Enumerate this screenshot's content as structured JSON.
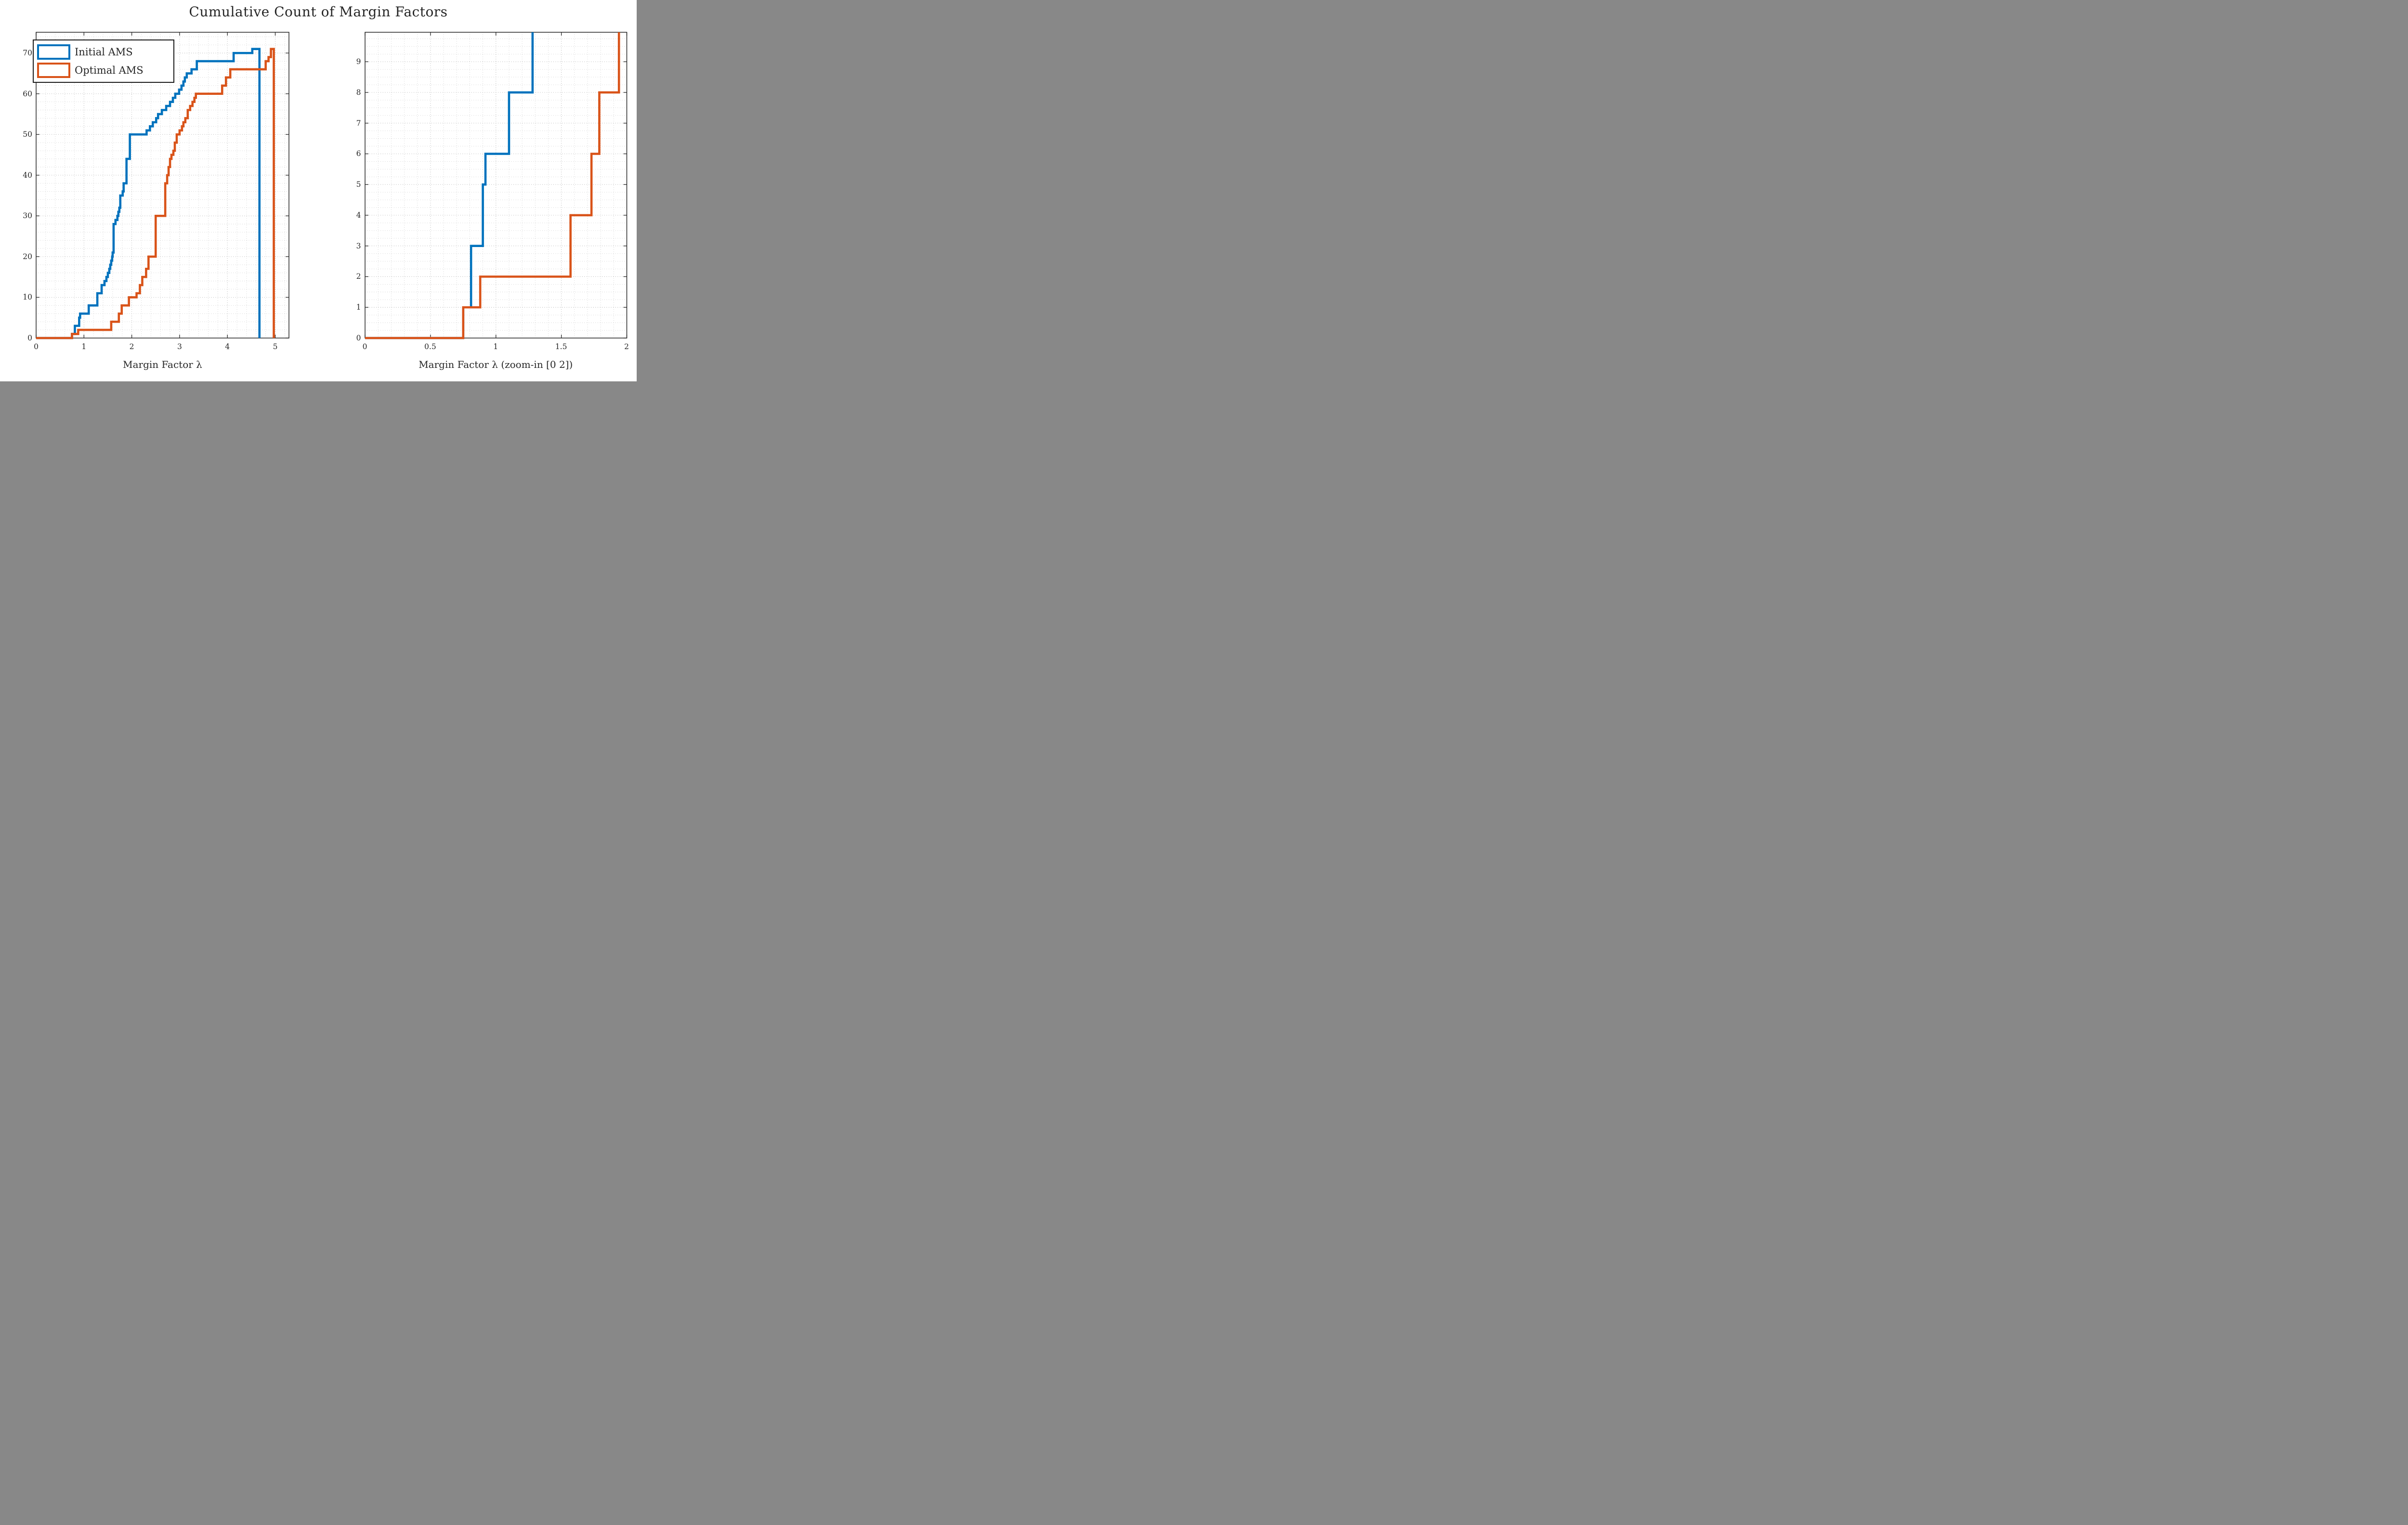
{
  "title": "Cumulative Count of Margin Factors",
  "colors": {
    "initial": "#0072BD",
    "optimal": "#D95319",
    "axis": "#262626",
    "grid_minor": "#bdbdbd",
    "grid_major": "#a3a3a3",
    "background": "#ffffff"
  },
  "legend": {
    "items": [
      {
        "label": "Initial AMS",
        "series": "initial"
      },
      {
        "label": "Optimal AMS",
        "series": "optimal"
      }
    ],
    "position": "northwest"
  },
  "chart_data": [
    {
      "type": "stairs-cumulative-count",
      "panel": "left",
      "xlabel": "Margin Factor λ",
      "ylabel": "",
      "xlim": [
        0,
        5.287
      ],
      "ylim": [
        0,
        75.1
      ],
      "xticks": [
        0,
        1,
        2,
        3,
        4,
        5
      ],
      "xtick_labels": [
        "0",
        "1",
        "2",
        "3",
        "4",
        "5"
      ],
      "yticks": [
        0,
        10,
        20,
        30,
        40,
        50,
        60,
        70
      ],
      "ytick_labels": [
        "0",
        "10",
        "20",
        "30",
        "40",
        "50",
        "60",
        "70"
      ],
      "grid": "dotted-minor",
      "minor_grid_spacing": {
        "x": 0.2,
        "y": 2
      },
      "series": [
        {
          "name": "Initial AMS",
          "color_key": "initial",
          "total_count": 71,
          "close_x": 4.67,
          "steps": [
            [
              0.75,
              1
            ],
            [
              0.81,
              3
            ],
            [
              0.9,
              5
            ],
            [
              0.92,
              6
            ],
            [
              1.1,
              8
            ],
            [
              1.28,
              11
            ],
            [
              1.37,
              13
            ],
            [
              1.43,
              14
            ],
            [
              1.47,
              15
            ],
            [
              1.5,
              16
            ],
            [
              1.53,
              17
            ],
            [
              1.55,
              18
            ],
            [
              1.57,
              19
            ],
            [
              1.59,
              20
            ],
            [
              1.6,
              21
            ],
            [
              1.62,
              28
            ],
            [
              1.66,
              29
            ],
            [
              1.7,
              30
            ],
            [
              1.72,
              31
            ],
            [
              1.74,
              32
            ],
            [
              1.76,
              35
            ],
            [
              1.81,
              36
            ],
            [
              1.83,
              38
            ],
            [
              1.89,
              44
            ],
            [
              1.96,
              50
            ],
            [
              2.31,
              51
            ],
            [
              2.38,
              52
            ],
            [
              2.44,
              53
            ],
            [
              2.51,
              54
            ],
            [
              2.55,
              55
            ],
            [
              2.63,
              56
            ],
            [
              2.72,
              57
            ],
            [
              2.8,
              58
            ],
            [
              2.86,
              59
            ],
            [
              2.91,
              60
            ],
            [
              2.99,
              61
            ],
            [
              3.04,
              62
            ],
            [
              3.08,
              63
            ],
            [
              3.11,
              64
            ],
            [
              3.15,
              65
            ],
            [
              3.25,
              66
            ],
            [
              3.36,
              68
            ],
            [
              4.13,
              70
            ],
            [
              4.52,
              71
            ]
          ]
        },
        {
          "name": "Optimal AMS",
          "color_key": "optimal",
          "total_count": 71,
          "close_x": 4.97,
          "steps": [
            [
              0.75,
              1
            ],
            [
              0.88,
              2
            ],
            [
              1.57,
              4
            ],
            [
              1.73,
              6
            ],
            [
              1.79,
              8
            ],
            [
              1.94,
              10
            ],
            [
              2.1,
              11
            ],
            [
              2.17,
              13
            ],
            [
              2.22,
              15
            ],
            [
              2.3,
              17
            ],
            [
              2.35,
              20
            ],
            [
              2.5,
              30
            ],
            [
              2.7,
              38
            ],
            [
              2.74,
              40
            ],
            [
              2.77,
              42
            ],
            [
              2.8,
              44
            ],
            [
              2.83,
              45
            ],
            [
              2.87,
              46
            ],
            [
              2.9,
              48
            ],
            [
              2.94,
              50
            ],
            [
              3.0,
              51
            ],
            [
              3.05,
              52
            ],
            [
              3.08,
              53
            ],
            [
              3.12,
              54
            ],
            [
              3.17,
              56
            ],
            [
              3.22,
              57
            ],
            [
              3.27,
              58
            ],
            [
              3.31,
              59
            ],
            [
              3.34,
              60
            ],
            [
              3.89,
              62
            ],
            [
              3.97,
              64
            ],
            [
              4.06,
              66
            ],
            [
              4.8,
              68
            ],
            [
              4.86,
              69
            ],
            [
              4.91,
              71
            ]
          ]
        }
      ]
    },
    {
      "type": "stairs-cumulative-count",
      "panel": "right",
      "xlabel": "Margin Factor λ (zoom-in [0 2])",
      "ylabel": "",
      "xlim": [
        0,
        2
      ],
      "ylim": [
        0,
        9.96
      ],
      "xticks": [
        0,
        0.5,
        1,
        1.5,
        2
      ],
      "xtick_labels": [
        "0",
        "0.5",
        "1",
        "1.5",
        "2"
      ],
      "yticks": [
        0,
        1,
        2,
        3,
        4,
        5,
        6,
        7,
        8,
        9
      ],
      "ytick_labels": [
        "0",
        "1",
        "2",
        "3",
        "4",
        "5",
        "6",
        "7",
        "8",
        "9"
      ],
      "grid": "dotted-minor",
      "minor_grid_spacing": {
        "x": 0.1,
        "y": 0.25
      },
      "series": [
        {
          "name": "Initial AMS",
          "color_key": "initial",
          "steps": [
            [
              0.75,
              1
            ],
            [
              0.81,
              3
            ],
            [
              0.9,
              5
            ],
            [
              0.92,
              6
            ],
            [
              1.1,
              8
            ],
            [
              1.28,
              11
            ]
          ]
        },
        {
          "name": "Optimal AMS",
          "color_key": "optimal",
          "steps": [
            [
              0.75,
              1
            ],
            [
              0.88,
              2
            ],
            [
              1.57,
              4
            ],
            [
              1.73,
              6
            ],
            [
              1.79,
              8
            ],
            [
              1.94,
              10
            ]
          ]
        }
      ]
    }
  ]
}
